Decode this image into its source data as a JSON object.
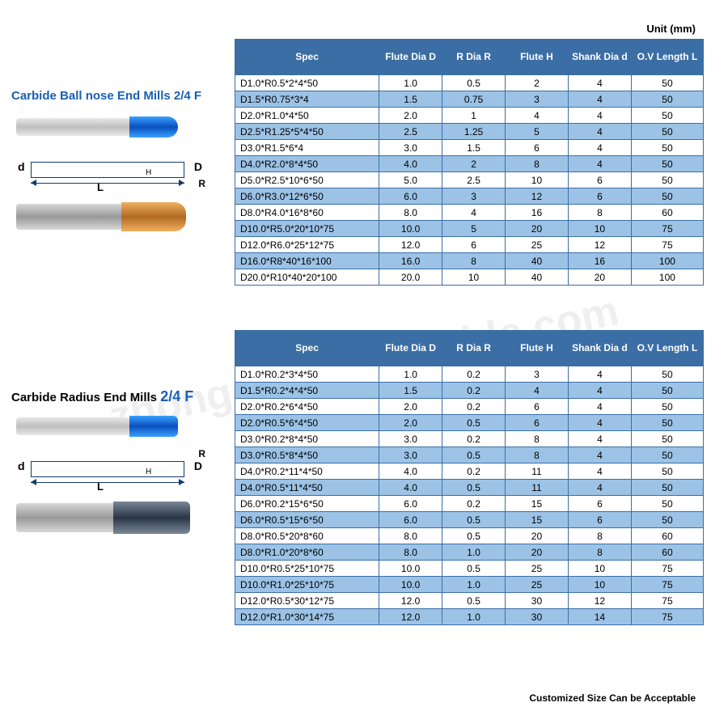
{
  "unit_label": "Unit (mm)",
  "footer": "Customized Size Can be Acceptable",
  "watermark": "zhongdalihuacarbide.com",
  "colors": {
    "header_bg": "#3b6ea5",
    "header_fg": "#ffffff",
    "row_alt": "#9cc3e6",
    "row_norm": "#ffffff",
    "border": "#3b6ea5",
    "title_blue": "#1a5fb4"
  },
  "diagram_labels": {
    "d": "d",
    "D": "D",
    "H": "H",
    "L": "L",
    "R": "R"
  },
  "section1": {
    "title": "Carbide  Ball nose End Mills 2/4 F",
    "headers": [
      "Spec",
      "Flute Dia  D",
      "R Dia R",
      "Flute H",
      "Shank Dia d",
      "O.V Length  L"
    ],
    "rows": [
      {
        "spec": "D1.0*R0.5*2*4*50",
        "d": "1.0",
        "r": "0.5",
        "h": "2",
        "sd": "4",
        "l": "50",
        "alt": false
      },
      {
        "spec": "D1.5*R0.75*3*4",
        "d": "1.5",
        "r": "0.75",
        "h": "3",
        "sd": "4",
        "l": "50",
        "alt": true
      },
      {
        "spec": "D2.0*R1.0*4*50",
        "d": "2.0",
        "r": "1",
        "h": "4",
        "sd": "4",
        "l": "50",
        "alt": false
      },
      {
        "spec": "D2.5*R1.25*5*4*50",
        "d": "2.5",
        "r": "1.25",
        "h": "5",
        "sd": "4",
        "l": "50",
        "alt": true
      },
      {
        "spec": "D3.0*R1.5*6*4",
        "d": "3.0",
        "r": "1.5",
        "h": "6",
        "sd": "4",
        "l": "50",
        "alt": false
      },
      {
        "spec": "D4.0*R2.0*8*4*50",
        "d": "4.0",
        "r": "2",
        "h": "8",
        "sd": "4",
        "l": "50",
        "alt": true
      },
      {
        "spec": "D5.0*R2.5*10*6*50",
        "d": "5.0",
        "r": "2.5",
        "h": "10",
        "sd": "6",
        "l": "50",
        "alt": false
      },
      {
        "spec": "D6.0*R3.0*12*6*50",
        "d": "6.0",
        "r": "3",
        "h": "12",
        "sd": "6",
        "l": "50",
        "alt": true
      },
      {
        "spec": "D8.0*R4.0*16*8*60",
        "d": "8.0",
        "r": "4",
        "h": "16",
        "sd": "8",
        "l": "60",
        "alt": false
      },
      {
        "spec": "D10.0*R5.0*20*10*75",
        "d": "10.0",
        "r": "5",
        "h": "20",
        "sd": "10",
        "l": "75",
        "alt": true
      },
      {
        "spec": "D12.0*R6.0*25*12*75",
        "d": "12.0",
        "r": "6",
        "h": "25",
        "sd": "12",
        "l": "75",
        "alt": false
      },
      {
        "spec": "D16.0*R8*40*16*100",
        "d": "16.0",
        "r": "8",
        "h": "40",
        "sd": "16",
        "l": "100",
        "alt": true
      },
      {
        "spec": "D20.0*R10*40*20*100",
        "d": "20.0",
        "r": "10",
        "h": "40",
        "sd": "20",
        "l": "100",
        "alt": false
      }
    ]
  },
  "section2": {
    "title_a": "Carbide Radius End Mills ",
    "title_b": "2/4 F",
    "headers": [
      "Spec",
      "Flute Dia  D",
      "R Dia R",
      "Flute H",
      "Shank Dia d",
      "O.V Length L"
    ],
    "rows": [
      {
        "spec": "D1.0*R0.2*3*4*50",
        "d": "1.0",
        "r": "0.2",
        "h": "3",
        "sd": "4",
        "l": "50",
        "alt": false
      },
      {
        "spec": "D1.5*R0.2*4*4*50",
        "d": "1.5",
        "r": "0.2",
        "h": "4",
        "sd": "4",
        "l": "50",
        "alt": true
      },
      {
        "spec": "D2.0*R0.2*6*4*50",
        "d": "2.0",
        "r": "0.2",
        "h": "6",
        "sd": "4",
        "l": "50",
        "alt": false
      },
      {
        "spec": "D2.0*R0.5*6*4*50",
        "d": "2.0",
        "r": "0.5",
        "h": "6",
        "sd": "4",
        "l": "50",
        "alt": true
      },
      {
        "spec": "D3.0*R0.2*8*4*50",
        "d": "3.0",
        "r": "0.2",
        "h": "8",
        "sd": "4",
        "l": "50",
        "alt": false
      },
      {
        "spec": "D3.0*R0.5*8*4*50",
        "d": "3.0",
        "r": "0.5",
        "h": "8",
        "sd": "4",
        "l": "50",
        "alt": true
      },
      {
        "spec": "D4.0*R0.2*11*4*50",
        "d": "4.0",
        "r": "0.2",
        "h": "11",
        "sd": "4",
        "l": "50",
        "alt": false
      },
      {
        "spec": "D4.0*R0.5*11*4*50",
        "d": "4.0",
        "r": "0.5",
        "h": "11",
        "sd": "4",
        "l": "50",
        "alt": true
      },
      {
        "spec": "D6.0*R0.2*15*6*50",
        "d": "6.0",
        "r": "0.2",
        "h": "15",
        "sd": "6",
        "l": "50",
        "alt": false
      },
      {
        "spec": "D6.0*R0.5*15*6*50",
        "d": "6.0",
        "r": "0.5",
        "h": "15",
        "sd": "6",
        "l": "50",
        "alt": true
      },
      {
        "spec": "D8.0*R0.5*20*8*60",
        "d": "8.0",
        "r": "0.5",
        "h": "20",
        "sd": "8",
        "l": "60",
        "alt": false
      },
      {
        "spec": "D8.0*R1.0*20*8*60",
        "d": "8.0",
        "r": "1.0",
        "h": "20",
        "sd": "8",
        "l": "60",
        "alt": true
      },
      {
        "spec": "D10.0*R0.5*25*10*75",
        "d": "10.0",
        "r": "0.5",
        "h": "25",
        "sd": "10",
        "l": "75",
        "alt": false
      },
      {
        "spec": "D10.0*R1.0*25*10*75",
        "d": "10.0",
        "r": "1.0",
        "h": "25",
        "sd": "10",
        "l": "75",
        "alt": true
      },
      {
        "spec": "D12.0*R0.5*30*12*75",
        "d": "12.0",
        "r": "0.5",
        "h": "30",
        "sd": "12",
        "l": "75",
        "alt": false
      },
      {
        "spec": "D12.0*R1.0*30*14*75",
        "d": "12.0",
        "r": "1.0",
        "h": "30",
        "sd": "14",
        "l": "75",
        "alt": true
      }
    ]
  }
}
